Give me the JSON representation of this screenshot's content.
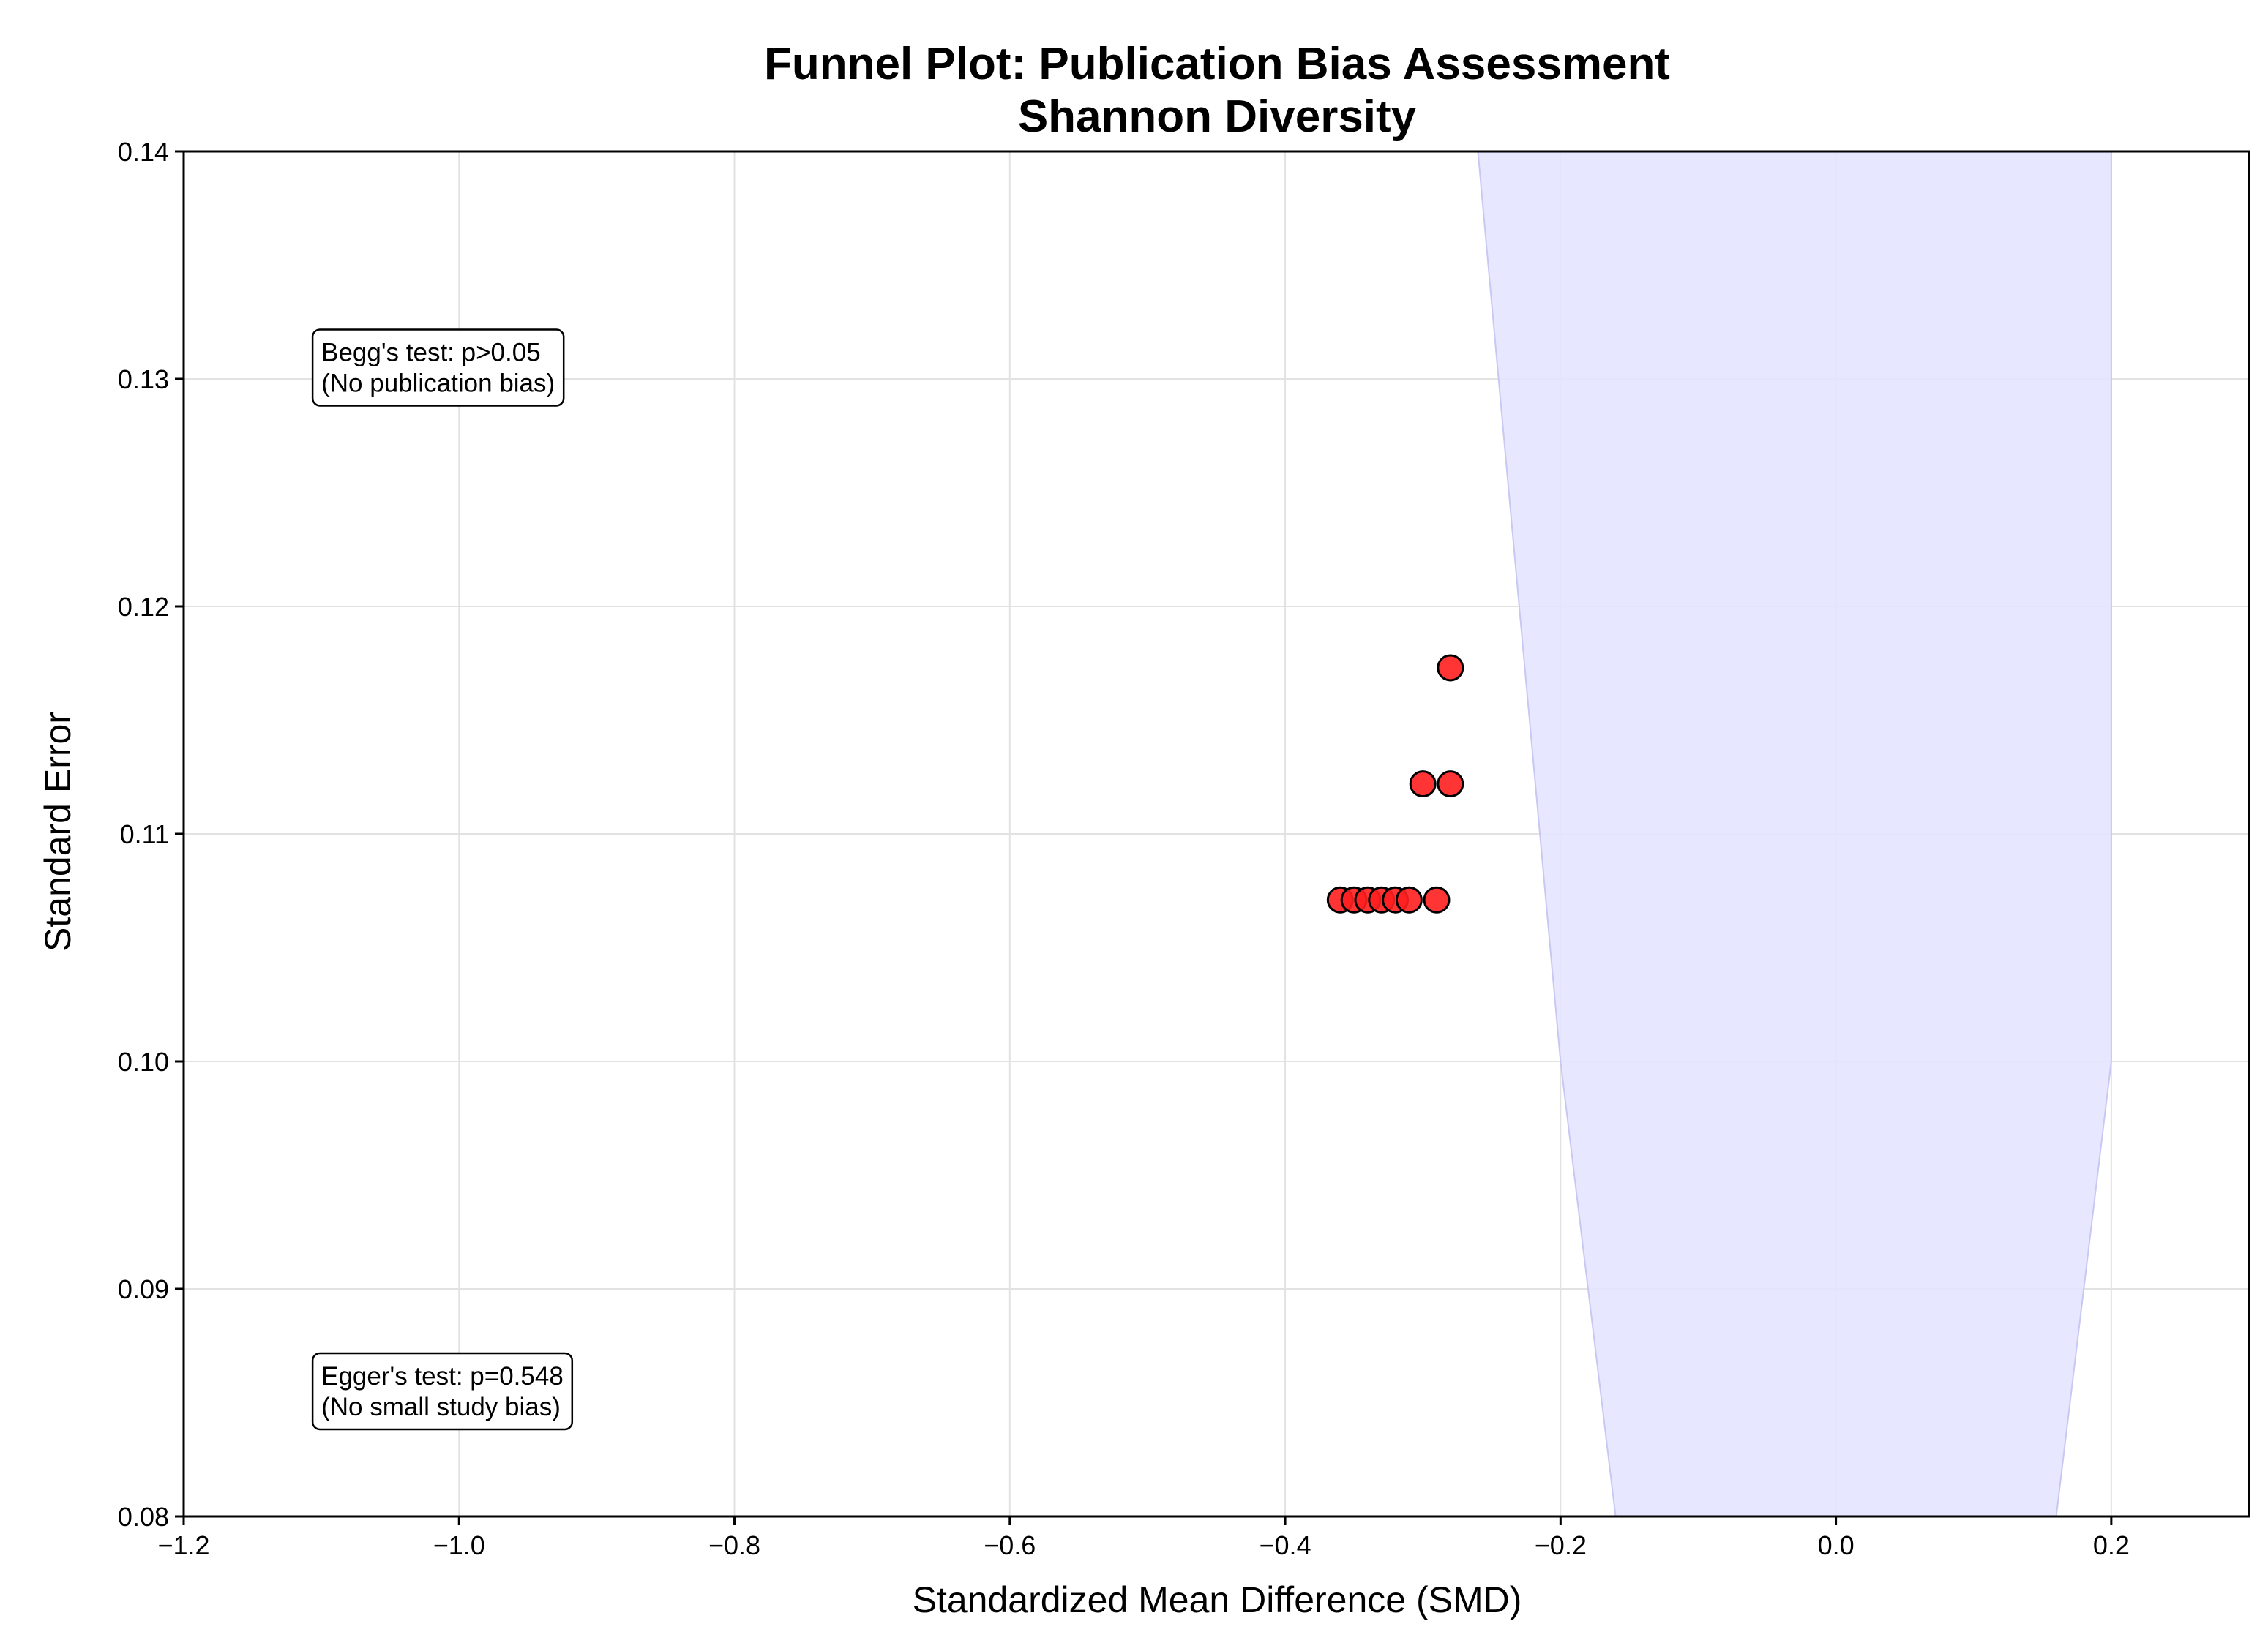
{
  "chart_data": {
    "type": "scatter",
    "title_lines": [
      "Funnel Plot: Publication Bias Assessment",
      "Shannon Diversity"
    ],
    "xlabel": "Standardized Mean Difference (SMD)",
    "ylabel": "Standard Error",
    "xlim": [
      -1.2,
      0.3
    ],
    "ylim": [
      0.08,
      0.14
    ],
    "xticks": [
      -1.2,
      -1.0,
      -0.8,
      -0.6,
      -0.4,
      -0.2,
      0.0,
      0.2
    ],
    "xtick_labels": [
      "−1.2",
      "−1.0",
      "−0.8",
      "−0.6",
      "−0.4",
      "−0.2",
      "0.0",
      "0.2"
    ],
    "yticks": [
      0.08,
      0.09,
      0.1,
      0.11,
      0.12,
      0.13,
      0.14
    ],
    "ytick_labels": [
      "0.08",
      "0.09",
      "0.10",
      "0.11",
      "0.12",
      "0.13",
      "0.14"
    ],
    "grid": true,
    "points": [
      {
        "x": -0.36,
        "y": 0.1071
      },
      {
        "x": -0.35,
        "y": 0.1071
      },
      {
        "x": -0.34,
        "y": 0.1071
      },
      {
        "x": -0.33,
        "y": 0.1071
      },
      {
        "x": -0.32,
        "y": 0.1071
      },
      {
        "x": -0.31,
        "y": 0.1071
      },
      {
        "x": -0.29,
        "y": 0.1071
      },
      {
        "x": -0.3,
        "y": 0.1122
      },
      {
        "x": -0.28,
        "y": 0.1122
      },
      {
        "x": -0.28,
        "y": 0.1173
      }
    ],
    "funnel_region": [
      {
        "x": -0.26,
        "y": 0.14
      },
      {
        "x": 0.2,
        "y": 0.14
      },
      {
        "x": 0.2,
        "y": 0.1
      },
      {
        "x": 0.16,
        "y": 0.08
      },
      {
        "x": -0.16,
        "y": 0.08
      },
      {
        "x": -0.2,
        "y": 0.1
      }
    ],
    "annotations": [
      {
        "lines": [
          "Begg's test: p>0.05",
          "(No publication bias)"
        ],
        "x": -1.1,
        "y": 0.1305
      },
      {
        "lines": [
          "Egger's test: p=0.548",
          "(No small study bias)"
        ],
        "x": -1.1,
        "y": 0.0855
      }
    ],
    "colors": {
      "point_fill": "#ff1f1f",
      "point_edge": "#000000",
      "funnel_fill": "#e4e4ff",
      "funnel_edge": "#c8c8f2",
      "grid": "#e2e2e2"
    }
  }
}
